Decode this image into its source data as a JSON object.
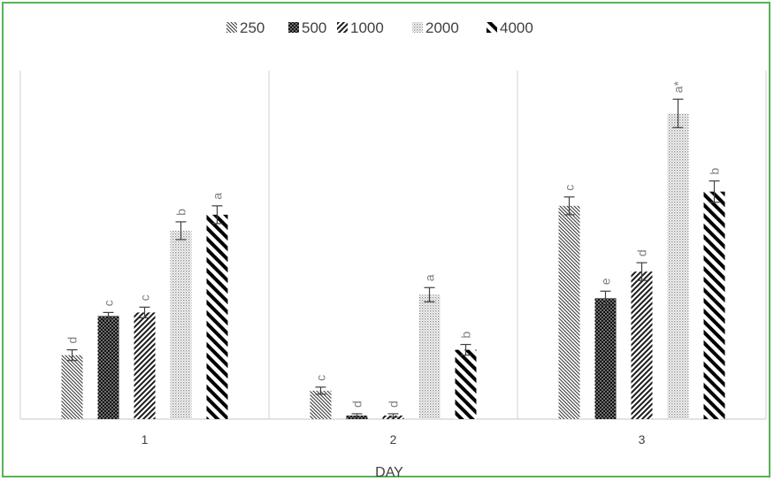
{
  "chart_data": {
    "type": "bar",
    "title": "",
    "xlabel": "DAY",
    "ylabel": "",
    "categories": [
      "1",
      "2",
      "3"
    ],
    "ylim": [
      0,
      100
    ],
    "grid": false,
    "legend_position": "top-center",
    "series": [
      {
        "name": "250",
        "pattern": "dense-diagonal-rev",
        "values": [
          18,
          8,
          60
        ],
        "errors": [
          1.5,
          1,
          2.5
        ],
        "labels": [
          "d",
          "c",
          "c"
        ]
      },
      {
        "name": "500",
        "pattern": "dark-dotted",
        "values": [
          29,
          1,
          34
        ],
        "errors": [
          1,
          0.5,
          2
        ],
        "labels": [
          "c",
          "d",
          "e"
        ]
      },
      {
        "name": "1000",
        "pattern": "diagonal",
        "values": [
          30,
          1,
          41.5
        ],
        "errors": [
          1.5,
          0.5,
          2.5
        ],
        "labels": [
          "c",
          "d",
          "d"
        ]
      },
      {
        "name": "2000",
        "pattern": "light-dots",
        "values": [
          53,
          35,
          86
        ],
        "errors": [
          2.5,
          2,
          4
        ],
        "labels": [
          "b",
          "a",
          "a*"
        ]
      },
      {
        "name": "4000",
        "pattern": "thick-diagonal-rev",
        "values": [
          57.5,
          19.5,
          64
        ],
        "errors": [
          2.5,
          1.5,
          3
        ],
        "labels": [
          "a",
          "b",
          "b"
        ]
      }
    ]
  },
  "colors": {
    "frame_border": "#57b356",
    "axis": "#d9d9d9",
    "text": "#404040",
    "label_text": "#7f7f7f",
    "bar_dark": "#111111"
  }
}
